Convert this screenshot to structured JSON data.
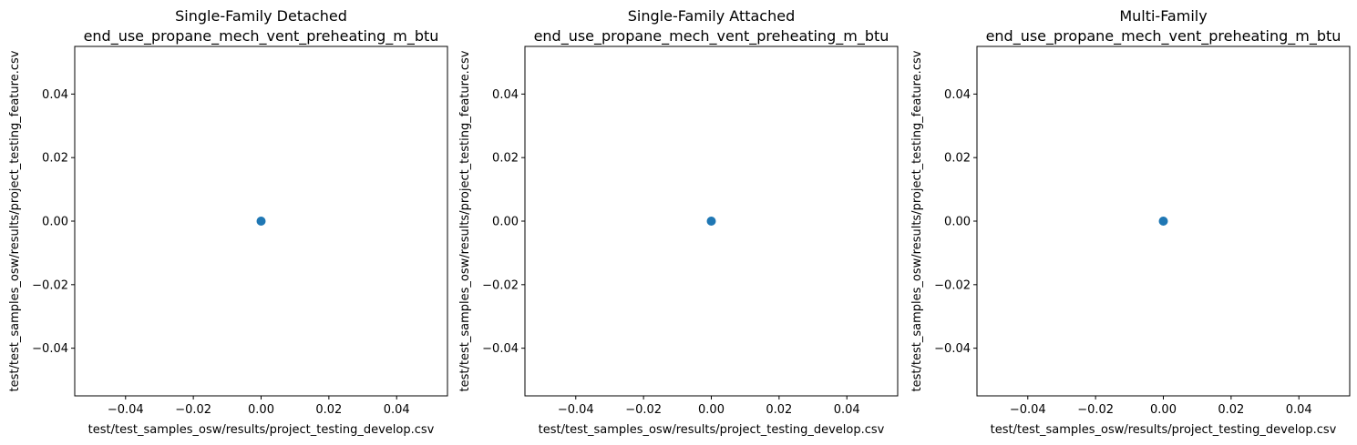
{
  "chart_data": [
    {
      "type": "scatter",
      "title": "Single-Family Detached",
      "subtitle": "end_use_propane_mech_vent_preheating_m_btu",
      "xlabel": "test/test_samples_osw/results/project_testing_develop.csv",
      "ylabel": "test/test_samples_osw/results/project_testing_feature.csv",
      "xlim": [
        -0.055,
        0.055
      ],
      "ylim": [
        -0.055,
        0.055
      ],
      "xticks": [
        -0.04,
        -0.02,
        0.0,
        0.02,
        0.04
      ],
      "yticks": [
        -0.04,
        -0.02,
        0.0,
        0.02,
        0.04
      ],
      "xtick_labels": [
        "−0.04",
        "−0.02",
        "0.00",
        "0.02",
        "0.04"
      ],
      "ytick_labels": [
        "−0.04",
        "−0.02",
        "0.00",
        "0.02",
        "0.04"
      ],
      "points": [
        {
          "x": 0,
          "y": 0
        }
      ],
      "grid": false,
      "color": "#1f77b4"
    },
    {
      "type": "scatter",
      "title": "Single-Family Attached",
      "subtitle": "end_use_propane_mech_vent_preheating_m_btu",
      "xlabel": "test/test_samples_osw/results/project_testing_develop.csv",
      "ylabel": "test/test_samples_osw/results/project_testing_feature.csv",
      "xlim": [
        -0.055,
        0.055
      ],
      "ylim": [
        -0.055,
        0.055
      ],
      "xticks": [
        -0.04,
        -0.02,
        0.0,
        0.02,
        0.04
      ],
      "yticks": [
        -0.04,
        -0.02,
        0.0,
        0.02,
        0.04
      ],
      "xtick_labels": [
        "−0.04",
        "−0.02",
        "0.00",
        "0.02",
        "0.04"
      ],
      "ytick_labels": [
        "−0.04",
        "−0.02",
        "0.00",
        "0.02",
        "0.04"
      ],
      "points": [
        {
          "x": 0,
          "y": 0
        }
      ],
      "grid": false,
      "color": "#1f77b4"
    },
    {
      "type": "scatter",
      "title": "Multi-Family",
      "subtitle": "end_use_propane_mech_vent_preheating_m_btu",
      "xlabel": "test/test_samples_osw/results/project_testing_develop.csv",
      "ylabel": "test/test_samples_osw/results/project_testing_feature.csv",
      "xlim": [
        -0.055,
        0.055
      ],
      "ylim": [
        -0.055,
        0.055
      ],
      "xticks": [
        -0.04,
        -0.02,
        0.0,
        0.02,
        0.04
      ],
      "yticks": [
        -0.04,
        -0.02,
        0.0,
        0.02,
        0.04
      ],
      "xtick_labels": [
        "−0.04",
        "−0.02",
        "0.00",
        "0.02",
        "0.04"
      ],
      "ytick_labels": [
        "−0.04",
        "−0.02",
        "0.00",
        "0.02",
        "0.04"
      ],
      "points": [
        {
          "x": 0,
          "y": 0
        }
      ],
      "grid": false,
      "color": "#1f77b4"
    }
  ]
}
